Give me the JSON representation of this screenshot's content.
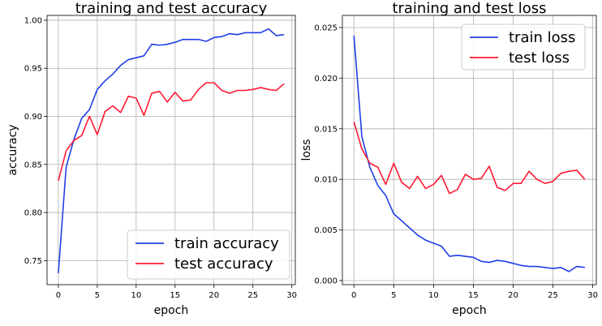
{
  "colors": {
    "train": "#1f3fe6",
    "test": "#ff1a33"
  },
  "chart_data": [
    {
      "type": "line",
      "title": "training and test accuracy",
      "xlabel": "epoch",
      "ylabel": "accuracy",
      "xlim": [
        -1.45,
        30.45
      ],
      "ylim": [
        0.725,
        1.005
      ],
      "xticks": [
        0,
        5,
        10,
        15,
        20,
        25,
        30
      ],
      "yticks": [
        0.75,
        0.8,
        0.85,
        0.9,
        0.95,
        1.0
      ],
      "ytick_labels": [
        "0.75",
        "0.80",
        "0.85",
        "0.90",
        "0.95",
        "1.00"
      ],
      "grid": true,
      "legend_position": "lower-right",
      "x": [
        0,
        1,
        2,
        3,
        4,
        5,
        6,
        7,
        8,
        9,
        10,
        11,
        12,
        13,
        14,
        15,
        16,
        17,
        18,
        19,
        20,
        21,
        22,
        23,
        24,
        25,
        26,
        27,
        28,
        29
      ],
      "series": [
        {
          "name": "train accuracy",
          "color_key": "train",
          "values": [
            0.737,
            0.847,
            0.876,
            0.898,
            0.907,
            0.928,
            0.937,
            0.944,
            0.953,
            0.959,
            0.961,
            0.963,
            0.975,
            0.974,
            0.975,
            0.977,
            0.98,
            0.98,
            0.98,
            0.978,
            0.982,
            0.983,
            0.986,
            0.985,
            0.987,
            0.987,
            0.987,
            0.991,
            0.984,
            0.985
          ]
        },
        {
          "name": "test accuracy",
          "color_key": "test",
          "values": [
            0.833,
            0.864,
            0.875,
            0.88,
            0.9,
            0.881,
            0.905,
            0.911,
            0.904,
            0.921,
            0.919,
            0.901,
            0.924,
            0.926,
            0.915,
            0.925,
            0.916,
            0.917,
            0.928,
            0.935,
            0.935,
            0.927,
            0.924,
            0.927,
            0.927,
            0.928,
            0.93,
            0.928,
            0.927,
            0.934
          ]
        }
      ]
    },
    {
      "type": "line",
      "title": "training and test loss",
      "xlabel": "epoch",
      "ylabel": "loss",
      "xlim": [
        -1.45,
        30.45
      ],
      "ylim": [
        -0.0004,
        0.0262
      ],
      "xticks": [
        0,
        5,
        10,
        15,
        20,
        25,
        30
      ],
      "yticks": [
        0.0,
        0.005,
        0.01,
        0.015,
        0.02,
        0.025
      ],
      "ytick_labels": [
        "0.000",
        "0.005",
        "0.010",
        "0.015",
        "0.020",
        "0.025"
      ],
      "grid": true,
      "legend_position": "upper-right",
      "x": [
        0,
        1,
        2,
        3,
        4,
        5,
        6,
        7,
        8,
        9,
        10,
        11,
        12,
        13,
        14,
        15,
        16,
        17,
        18,
        19,
        20,
        21,
        22,
        23,
        24,
        25,
        26,
        27,
        28,
        29
      ],
      "series": [
        {
          "name": "train loss",
          "color_key": "train",
          "values": [
            0.0242,
            0.0142,
            0.0112,
            0.0094,
            0.0084,
            0.0066,
            0.0059,
            0.0052,
            0.0045,
            0.004,
            0.0037,
            0.0034,
            0.0024,
            0.0025,
            0.0024,
            0.0023,
            0.0019,
            0.0018,
            0.002,
            0.0019,
            0.0017,
            0.0015,
            0.0014,
            0.0014,
            0.0013,
            0.0012,
            0.0013,
            0.0009,
            0.0014,
            0.0013
          ]
        },
        {
          "name": "test loss",
          "color_key": "test",
          "values": [
            0.0157,
            0.013,
            0.0116,
            0.0112,
            0.0095,
            0.0116,
            0.0097,
            0.0091,
            0.0103,
            0.0091,
            0.0095,
            0.0104,
            0.0086,
            0.009,
            0.0105,
            0.01,
            0.0101,
            0.0113,
            0.0092,
            0.0089,
            0.0096,
            0.0096,
            0.0108,
            0.01,
            0.0096,
            0.0098,
            0.0106,
            0.0108,
            0.0109,
            0.01
          ]
        }
      ]
    }
  ]
}
